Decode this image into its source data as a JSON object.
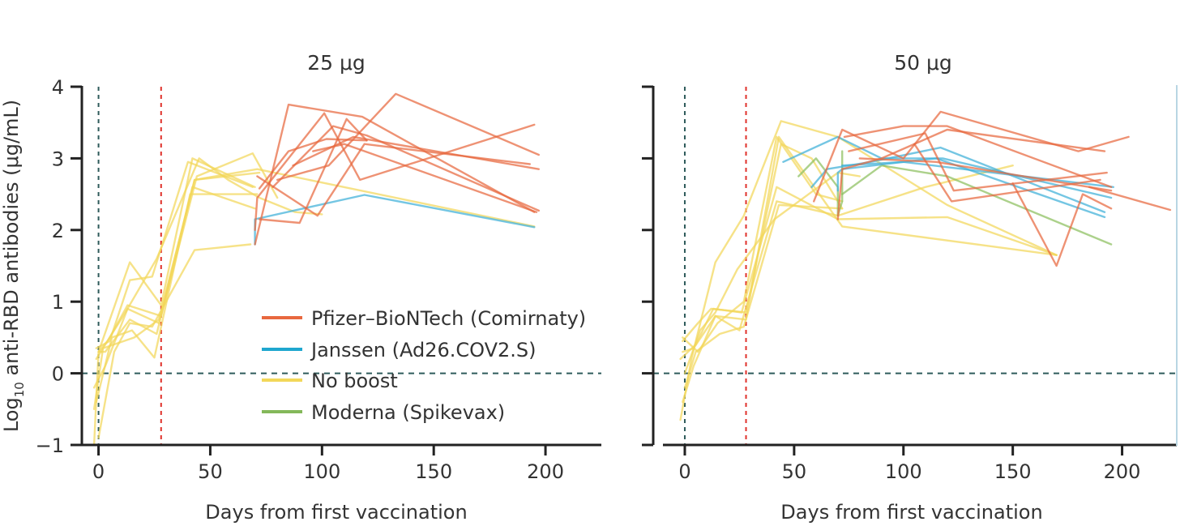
{
  "chart_data": [
    {
      "type": "line",
      "title": "25  μg",
      "xlabel": "Days from first vaccination",
      "ylabel": "Log10 anti-RBD antibodies (μg/mL)",
      "xlim": [
        -10,
        225
      ],
      "ylim": [
        -1,
        4
      ],
      "xticks": [
        0,
        50,
        100,
        150,
        200
      ],
      "yticks": [
        -1,
        0,
        1,
        2,
        3,
        4
      ],
      "vlines": [
        {
          "x": 0,
          "color": "#2e5b5b"
        },
        {
          "x": 28,
          "color": "#e0312b"
        }
      ],
      "hlines": [
        {
          "y": 0,
          "color": "#2e5b5b"
        }
      ],
      "series": [
        {
          "name": "No boost",
          "group": "nb",
          "x": [
            -2,
            0,
            14,
            28,
            42,
            56,
            70
          ],
          "y": [
            -1,
            0.3,
            1.55,
            0.95,
            3.0,
            2.8,
            2.6
          ]
        },
        {
          "name": "No boost",
          "group": "nb",
          "x": [
            -2,
            3,
            13,
            27,
            42,
            70
          ],
          "y": [
            -0.2,
            0.1,
            0.9,
            0.7,
            2.6,
            2.3
          ]
        },
        {
          "name": "No boost",
          "group": "nb",
          "x": [
            -1,
            5,
            14,
            24,
            40,
            69
          ],
          "y": [
            0.35,
            0.45,
            1.3,
            1.35,
            2.95,
            2.6
          ]
        },
        {
          "name": "No boost",
          "group": "nb",
          "x": [
            0,
            3,
            14,
            26,
            43,
            72
          ],
          "y": [
            0.3,
            0.3,
            0.75,
            0.55,
            2.7,
            2.8
          ]
        },
        {
          "name": "No boost",
          "group": "nb",
          "x": [
            -1,
            6,
            15,
            25,
            41,
            71
          ],
          "y": [
            -0.4,
            0.5,
            0.6,
            0.22,
            2.5,
            2.5
          ]
        },
        {
          "name": "No boost",
          "group": "nb",
          "x": [
            0,
            7,
            14,
            24,
            43,
            68
          ],
          "y": [
            -0.9,
            0.3,
            0.7,
            0.65,
            1.72,
            1.8
          ]
        },
        {
          "name": "No boost",
          "group": "nb",
          "x": [
            -1,
            5,
            13,
            28,
            44,
            69,
            80
          ],
          "y": [
            0.2,
            0.5,
            0.95,
            0.8,
            2.75,
            3.07,
            2.45
          ]
        },
        {
          "name": "No boost",
          "group": "nb",
          "x": [
            0,
            4,
            12,
            26,
            45,
            58,
            72,
            88,
            100
          ],
          "y": [
            0.3,
            0.45,
            0.85,
            1.6,
            3.0,
            2.7,
            2.45,
            2.25,
            2.22
          ]
        },
        {
          "name": "No boost",
          "group": "nb",
          "x": [
            -2,
            2,
            16,
            27,
            43,
            71,
            195
          ],
          "y": [
            -0.5,
            0.35,
            0.5,
            0.75,
            2.7,
            2.85,
            2.05
          ]
        },
        {
          "name": "Janssen (Ad26.COV2.S)",
          "group": "j",
          "x": [
            70,
            70,
            119,
            195
          ],
          "y": [
            1.8,
            2.15,
            2.49,
            2.04
          ]
        },
        {
          "name": "Pfizer–BioNTech (Comirnaty)",
          "group": "p",
          "x": [
            70,
            85,
            118,
            195
          ],
          "y": [
            1.8,
            3.75,
            3.58,
            2.25
          ]
        },
        {
          "name": "Pfizer–BioNTech (Comirnaty)",
          "group": "p",
          "x": [
            70,
            71,
            101,
            117,
            195
          ],
          "y": [
            2.0,
            2.45,
            3.63,
            2.7,
            3.47
          ]
        },
        {
          "name": "Pfizer–BioNTech (Comirnaty)",
          "group": "p",
          "x": [
            71,
            98,
            119,
            193
          ],
          "y": [
            2.75,
            2.2,
            3.2,
            2.92
          ]
        },
        {
          "name": "Pfizer–BioNTech (Comirnaty)",
          "group": "p",
          "x": [
            72,
            90,
            111,
            120
          ],
          "y": [
            2.15,
            2.1,
            3.55,
            3.25
          ]
        },
        {
          "name": "Pfizer–BioNTech (Comirnaty)",
          "group": "p",
          "x": [
            72,
            85,
            102,
            120
          ],
          "y": [
            2.58,
            3.1,
            3.27,
            3.25
          ]
        },
        {
          "name": "Pfizer–BioNTech (Comirnaty)",
          "group": "p",
          "x": [
            78,
            105,
            120,
            197
          ],
          "y": [
            2.6,
            3.45,
            3.32,
            2.27
          ]
        },
        {
          "name": "Pfizer–BioNTech (Comirnaty)",
          "group": "p",
          "x": [
            80,
            103,
            133,
            197
          ],
          "y": [
            2.7,
            2.9,
            3.9,
            3.05
          ]
        },
        {
          "name": "Pfizer–BioNTech (Comirnaty)",
          "group": "p",
          "x": [
            87,
            114,
            197
          ],
          "y": [
            2.9,
            3.3,
            2.85
          ]
        },
        {
          "name": "Pfizer–BioNTech (Comirnaty)",
          "group": "p",
          "x": [
            96,
            110,
            196
          ],
          "y": [
            3.1,
            3.2,
            2.25
          ]
        }
      ]
    },
    {
      "type": "line",
      "title": "50  μg",
      "xlabel": "Days from first vaccination",
      "ylabel": "",
      "xlim": [
        -10,
        225
      ],
      "ylim": [
        -1,
        4
      ],
      "xticks": [
        0,
        50,
        100,
        150,
        200
      ],
      "yticks": [
        -1,
        0,
        1,
        2,
        3,
        4
      ],
      "vlines": [
        {
          "x": 0,
          "color": "#2e5b5b"
        },
        {
          "x": 28,
          "color": "#e0312b"
        }
      ],
      "hlines": [
        {
          "y": 0,
          "color": "#2e5b5b"
        }
      ],
      "series": [
        {
          "name": "No boost",
          "group": "nb",
          "x": [
            -2,
            3,
            14,
            27,
            44,
            70,
            120,
            170
          ],
          "y": [
            -0.65,
            0.2,
            1.55,
            2.2,
            3.52,
            3.3,
            2.35,
            1.65
          ]
        },
        {
          "name": "No boost",
          "group": "nb",
          "x": [
            -1,
            4,
            14,
            28,
            43,
            72,
            170
          ],
          "y": [
            -0.4,
            0.1,
            0.8,
            0.75,
            3.3,
            2.05,
            1.65
          ]
        },
        {
          "name": "No boost",
          "group": "nb",
          "x": [
            -2,
            5,
            13,
            26,
            42,
            70,
            120,
            170
          ],
          "y": [
            0.2,
            0.4,
            0.9,
            0.85,
            2.6,
            2.15,
            2.18,
            1.65
          ]
        },
        {
          "name": "No boost",
          "group": "nb",
          "x": [
            -1,
            6,
            15,
            27,
            42,
            60,
            72
          ],
          "y": [
            0.5,
            0.3,
            0.7,
            1.0,
            3.3,
            2.5,
            2.4
          ]
        },
        {
          "name": "No boost",
          "group": "nb",
          "x": [
            0,
            7,
            14,
            24,
            41,
            70,
            80
          ],
          "y": [
            0.0,
            0.6,
            0.85,
            1.45,
            2.15,
            2.8,
            2.75
          ]
        },
        {
          "name": "No boost",
          "group": "nb",
          "x": [
            -1,
            6,
            12,
            28,
            44,
            58,
            72
          ],
          "y": [
            0.45,
            0.7,
            0.9,
            0.85,
            3.2,
            3.0,
            2.3
          ]
        },
        {
          "name": "No boost",
          "group": "nb",
          "x": [
            0,
            5,
            16,
            27,
            43,
            72
          ],
          "y": [
            -0.2,
            0.3,
            0.55,
            0.65,
            2.35,
            2.3
          ]
        },
        {
          "name": "No boost",
          "group": "nb",
          "x": [
            -1,
            4,
            14,
            25,
            42,
            70,
            110,
            150
          ],
          "y": [
            0.3,
            0.35,
            0.8,
            0.6,
            2.4,
            2.2,
            2.6,
            2.9
          ]
        },
        {
          "name": "Moderna (Spikevax)",
          "group": "m",
          "x": [
            52,
            60,
            70,
            70,
            72,
            72
          ],
          "y": [
            2.75,
            3.0,
            2.6,
            2.2,
            2.4,
            3.1
          ]
        },
        {
          "name": "Moderna (Spikevax)",
          "group": "m",
          "x": [
            72,
            90,
            120,
            195
          ],
          "y": [
            2.5,
            2.9,
            2.75,
            1.8
          ]
        },
        {
          "name": "Janssen (Ad26.COV2.S)",
          "group": "j",
          "x": [
            45,
            70,
            90,
            118,
            195
          ],
          "y": [
            2.95,
            3.3,
            3.0,
            3.0,
            2.45
          ]
        },
        {
          "name": "Janssen (Ad26.COV2.S)",
          "group": "j",
          "x": [
            58,
            65,
            85,
            117,
            192
          ],
          "y": [
            2.6,
            2.85,
            2.95,
            3.15,
            2.25
          ]
        },
        {
          "name": "Janssen (Ad26.COV2.S)",
          "group": "j",
          "x": [
            70,
            70,
            72,
            100,
            196
          ],
          "y": [
            2.55,
            2.8,
            2.85,
            2.95,
            2.6
          ]
        },
        {
          "name": "Janssen (Ad26.COV2.S)",
          "group": "j",
          "x": [
            72,
            100,
            115,
            192
          ],
          "y": [
            2.9,
            2.95,
            3.0,
            2.18
          ]
        },
        {
          "name": "Pfizer–BioNTech (Comirnaty)",
          "group": "p",
          "x": [
            59,
            72,
            100,
            117,
            180,
            203
          ],
          "y": [
            2.4,
            3.4,
            3.0,
            3.65,
            3.1,
            3.3
          ]
        },
        {
          "name": "Pfizer–BioNTech (Comirnaty)",
          "group": "p",
          "x": [
            70,
            72,
            90,
            120,
            192
          ],
          "y": [
            2.15,
            2.85,
            3.0,
            3.4,
            3.1
          ]
        },
        {
          "name": "Pfizer–BioNTech (Comirnaty)",
          "group": "p",
          "x": [
            73,
            100,
            120,
            195
          ],
          "y": [
            3.3,
            3.45,
            3.45,
            2.6
          ]
        },
        {
          "name": "Pfizer–BioNTech (Comirnaty)",
          "group": "p",
          "x": [
            75,
            110,
            123,
            193
          ],
          "y": [
            3.1,
            3.35,
            2.55,
            2.8
          ]
        },
        {
          "name": "Pfizer–BioNTech (Comirnaty)",
          "group": "p",
          "x": [
            80,
            115,
            195
          ],
          "y": [
            3.0,
            2.95,
            2.55
          ]
        },
        {
          "name": "Pfizer–BioNTech (Comirnaty)",
          "group": "p",
          "x": [
            105,
            122,
            190
          ],
          "y": [
            3.2,
            2.4,
            2.7
          ]
        },
        {
          "name": "Pfizer–BioNTech (Comirnaty)",
          "group": "p",
          "x": [
            150,
            170,
            182,
            195
          ],
          "y": [
            2.65,
            1.5,
            2.5,
            2.3
          ]
        },
        {
          "name": "Pfizer–BioNTech (Comirnaty)",
          "group": "p",
          "x": [
            185,
            222
          ],
          "y": [
            2.6,
            2.28
          ]
        }
      ]
    }
  ],
  "legend": {
    "placement": "center-right of left panel",
    "items": [
      {
        "label": "Pfizer–BioNTech (Comirnaty)",
        "color": "#e8683f"
      },
      {
        "label": "Janssen (Ad26.COV2.S)",
        "color": "#1fa7cf"
      },
      {
        "label": "No boost",
        "color": "#f2d75a"
      },
      {
        "label": "Moderna (Spikevax)",
        "color": "#84b85a"
      }
    ]
  },
  "colors": {
    "p": "#e8683f",
    "j": "#3fb0d8",
    "nb": "#f2d75a",
    "m": "#8cbf5e",
    "axis": "#222222",
    "refline_blue": "#2e5b5b",
    "refline_red": "#e0312b"
  }
}
